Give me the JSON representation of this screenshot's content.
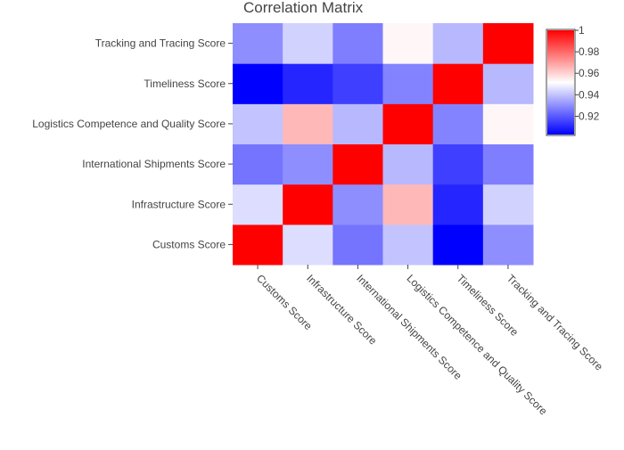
{
  "chart_data": {
    "type": "heatmap",
    "title": "Correlation Matrix",
    "x_categories": [
      "Customs Score",
      "Infrastructure Score",
      "International Shipments Score",
      "Logistics Competence and Quality Score",
      "Timeliness Score",
      "Tracking and Tracing Score"
    ],
    "y_categories": [
      "Customs Score",
      "Infrastructure Score",
      "International Shipments Score",
      "Logistics Competence and Quality Score",
      "Timeliness Score",
      "Tracking and Tracing Score"
    ],
    "values": [
      [
        1.0,
        0.945,
        0.925,
        0.94,
        0.903,
        0.93
      ],
      [
        0.945,
        1.0,
        0.93,
        0.965,
        0.91,
        0.943
      ],
      [
        0.925,
        0.93,
        1.0,
        0.938,
        0.915,
        0.927
      ],
      [
        0.94,
        0.965,
        0.938,
        1.0,
        0.928,
        0.953
      ],
      [
        0.903,
        0.91,
        0.915,
        0.928,
        1.0,
        0.938
      ],
      [
        0.93,
        0.943,
        0.927,
        0.953,
        0.938,
        1.0
      ]
    ],
    "zrange": [
      0.903,
      1.0
    ],
    "colorscale": [
      [
        0.0,
        "#0000ff"
      ],
      [
        0.5,
        "#ffffff"
      ],
      [
        1.0,
        "#ff0000"
      ]
    ],
    "colorbar": {
      "tick_values": [
        0.92,
        0.94,
        0.96,
        0.98,
        1.0
      ],
      "tick_labels": [
        "0.92",
        "0.94",
        "0.96",
        "0.98",
        "1"
      ]
    }
  }
}
